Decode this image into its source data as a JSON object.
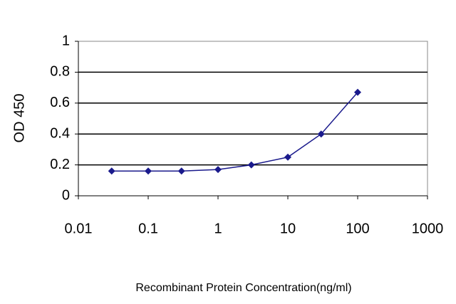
{
  "chart_data": {
    "type": "line",
    "x_log": true,
    "y_label": "OD 450",
    "x_label": "Recombinant Protein Concentration(ng/ml)",
    "x": [
      0.03,
      0.1,
      0.3,
      1,
      3,
      10,
      30,
      100
    ],
    "values": [
      0.16,
      0.16,
      0.16,
      0.17,
      0.2,
      0.25,
      0.4,
      0.67
    ],
    "color": "#1a1a8c",
    "xlim": [
      0.01,
      1000
    ],
    "xticks": [
      0.01,
      0.1,
      1,
      10,
      100,
      1000
    ],
    "ylim": [
      0,
      1
    ],
    "yticks": [
      0,
      0.2,
      0.4,
      0.6,
      0.8,
      1
    ],
    "grid": true
  }
}
